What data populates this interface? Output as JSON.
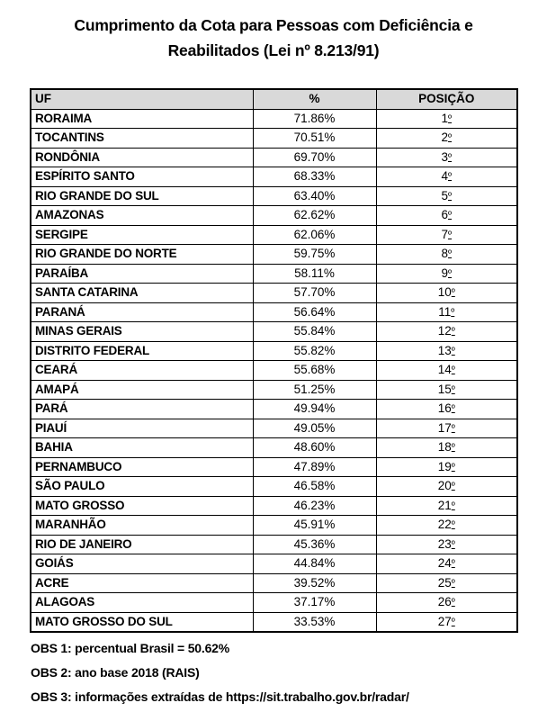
{
  "title": "Cumprimento da Cota para Pessoas com Deficiência e Reabilitados (Lei nº 8.213/91)",
  "table": {
    "columns": [
      "UF",
      "%",
      "POSIÇÃO"
    ],
    "rows": [
      {
        "uf": "RORAIMA",
        "percent": "71.86%",
        "position": "1º"
      },
      {
        "uf": "TOCANTINS",
        "percent": "70.51%",
        "position": "2º"
      },
      {
        "uf": "RONDÔNIA",
        "percent": "69.70%",
        "position": "3º"
      },
      {
        "uf": "ESPÍRITO SANTO",
        "percent": "68.33%",
        "position": "4º"
      },
      {
        "uf": "RIO GRANDE DO SUL",
        "percent": "63.40%",
        "position": "5º"
      },
      {
        "uf": "AMAZONAS",
        "percent": "62.62%",
        "position": "6º"
      },
      {
        "uf": "SERGIPE",
        "percent": "62.06%",
        "position": "7º"
      },
      {
        "uf": "RIO GRANDE DO NORTE",
        "percent": "59.75%",
        "position": "8º"
      },
      {
        "uf": "PARAÍBA",
        "percent": "58.11%",
        "position": "9º"
      },
      {
        "uf": "SANTA CATARINA",
        "percent": "57.70%",
        "position": "10º"
      },
      {
        "uf": "PARANÁ",
        "percent": "56.64%",
        "position": "11º"
      },
      {
        "uf": "MINAS GERAIS",
        "percent": "55.84%",
        "position": "12º"
      },
      {
        "uf": "DISTRITO FEDERAL",
        "percent": "55.82%",
        "position": "13º"
      },
      {
        "uf": "CEARÁ",
        "percent": "55.68%",
        "position": "14º"
      },
      {
        "uf": "AMAPÁ",
        "percent": "51.25%",
        "position": "15º"
      },
      {
        "uf": "PARÁ",
        "percent": "49.94%",
        "position": "16º"
      },
      {
        "uf": "PIAUÍ",
        "percent": "49.05%",
        "position": "17º"
      },
      {
        "uf": "BAHIA",
        "percent": "48.60%",
        "position": "18º"
      },
      {
        "uf": "PERNAMBUCO",
        "percent": "47.89%",
        "position": "19º"
      },
      {
        "uf": "SÃO PAULO",
        "percent": "46.58%",
        "position": "20º"
      },
      {
        "uf": "MATO GROSSO",
        "percent": "46.23%",
        "position": "21º"
      },
      {
        "uf": "MARANHÃO",
        "percent": "45.91%",
        "position": "22º"
      },
      {
        "uf": "RIO DE JANEIRO",
        "percent": "45.36%",
        "position": "23º"
      },
      {
        "uf": "GOIÁS",
        "percent": "44.84%",
        "position": "24º"
      },
      {
        "uf": "ACRE",
        "percent": "39.52%",
        "position": "25º"
      },
      {
        "uf": "ALAGOAS",
        "percent": "37.17%",
        "position": "26º"
      },
      {
        "uf": "MATO GROSSO DO SUL",
        "percent": "33.53%",
        "position": "27º"
      }
    ]
  },
  "notes": [
    "OBS 1: percentual Brasil = 50.62%",
    "OBS 2: ano base 2018 (RAIS)",
    "OBS 3: informações extraídas de https://sit.trabalho.gov.br/radar/"
  ],
  "colors": {
    "header_bg": "#D9D9D9",
    "border": "#000000",
    "text": "#000000",
    "page_bg": "#FFFFFF"
  },
  "chart_data": {
    "type": "table",
    "title": "Cumprimento da Cota para Pessoas com Deficiência e Reabilitados (Lei nº 8.213/91)",
    "columns": [
      "UF",
      "%",
      "POSIÇÃO"
    ],
    "categories": [
      "RORAIMA",
      "TOCANTINS",
      "RONDÔNIA",
      "ESPÍRITO SANTO",
      "RIO GRANDE DO SUL",
      "AMAZONAS",
      "SERGIPE",
      "RIO GRANDE DO NORTE",
      "PARAÍBA",
      "SANTA CATARINA",
      "PARANÁ",
      "MINAS GERAIS",
      "DISTRITO FEDERAL",
      "CEARÁ",
      "AMAPÁ",
      "PARÁ",
      "PIAUÍ",
      "BAHIA",
      "PERNAMBUCO",
      "SÃO PAULO",
      "MATO GROSSO",
      "MARANHÃO",
      "RIO DE JANEIRO",
      "GOIÁS",
      "ACRE",
      "ALAGOAS",
      "MATO GROSSO DO SUL"
    ],
    "values": [
      71.86,
      70.51,
      69.7,
      68.33,
      63.4,
      62.62,
      62.06,
      59.75,
      58.11,
      57.7,
      56.64,
      55.84,
      55.82,
      55.68,
      51.25,
      49.94,
      49.05,
      48.6,
      47.89,
      46.58,
      46.23,
      45.91,
      45.36,
      44.84,
      39.52,
      37.17,
      33.53
    ],
    "positions": [
      1,
      2,
      3,
      4,
      5,
      6,
      7,
      8,
      9,
      10,
      11,
      12,
      13,
      14,
      15,
      16,
      17,
      18,
      19,
      20,
      21,
      22,
      23,
      24,
      25,
      26,
      27
    ],
    "value_unit": "%",
    "annotations": [
      "OBS 1: percentual Brasil = 50.62%",
      "OBS 2: ano base 2018 (RAIS)",
      "OBS 3: informações extraídas de https://sit.trabalho.gov.br/radar/"
    ]
  }
}
